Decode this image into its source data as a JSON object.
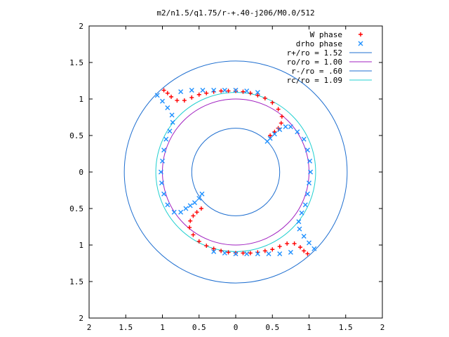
{
  "chart_data": {
    "type": "scatter",
    "title": "m2/n1.5/q1.75/r-+.40-j206/M0.0/512",
    "xlim": [
      -2,
      2
    ],
    "ylim": [
      -2,
      2
    ],
    "x_tick_labels": [
      "2",
      "1.5",
      "1",
      "0.5",
      "0",
      "0.5",
      "1",
      "1.5",
      "2"
    ],
    "y_tick_labels": [
      "2",
      "1.5",
      "1",
      "0.5",
      "0",
      "0.5",
      "1",
      "1.5",
      "2"
    ],
    "grid": false,
    "legend_position": "top-right",
    "circles": [
      {
        "name": "r+/ro = 1.52",
        "radius": 1.52,
        "color": "#1f6fd0"
      },
      {
        "name": "ro/ro = 1.00",
        "radius": 1.0,
        "color": "#a020c0"
      },
      {
        "name": "r-/ro = .60",
        "radius": 0.6,
        "color": "#1f6fd0"
      },
      {
        "name": "rc/ro = 1.09",
        "radius": 1.09,
        "color": "#20d0d0"
      }
    ],
    "series": [
      {
        "name": "W phase",
        "marker": "+",
        "color": "#ff0000",
        "points": [
          [
            -0.98,
            1.12
          ],
          [
            -0.93,
            1.08
          ],
          [
            -0.88,
            1.03
          ],
          [
            -0.8,
            0.98
          ],
          [
            -0.7,
            0.98
          ],
          [
            -0.6,
            1.02
          ],
          [
            -0.5,
            1.06
          ],
          [
            -0.4,
            1.08
          ],
          [
            -0.3,
            1.1
          ],
          [
            -0.2,
            1.11
          ],
          [
            -0.1,
            1.11
          ],
          [
            0.0,
            1.11
          ],
          [
            0.1,
            1.1
          ],
          [
            0.2,
            1.08
          ],
          [
            0.3,
            1.05
          ],
          [
            0.4,
            1.01
          ],
          [
            0.5,
            0.95
          ],
          [
            0.58,
            0.86
          ],
          [
            0.63,
            0.76
          ],
          [
            0.62,
            0.67
          ],
          [
            0.58,
            0.6
          ],
          [
            0.53,
            0.55
          ],
          [
            0.47,
            0.5
          ],
          [
            0.98,
            -1.12
          ],
          [
            0.93,
            -1.08
          ],
          [
            0.88,
            -1.03
          ],
          [
            0.8,
            -0.98
          ],
          [
            0.7,
            -0.98
          ],
          [
            0.6,
            -1.02
          ],
          [
            0.5,
            -1.06
          ],
          [
            0.4,
            -1.08
          ],
          [
            0.3,
            -1.1
          ],
          [
            0.2,
            -1.11
          ],
          [
            0.1,
            -1.11
          ],
          [
            0.0,
            -1.11
          ],
          [
            -0.1,
            -1.1
          ],
          [
            -0.2,
            -1.08
          ],
          [
            -0.3,
            -1.05
          ],
          [
            -0.4,
            -1.01
          ],
          [
            -0.5,
            -0.95
          ],
          [
            -0.58,
            -0.86
          ],
          [
            -0.63,
            -0.76
          ],
          [
            -0.62,
            -0.67
          ],
          [
            -0.58,
            -0.6
          ],
          [
            -0.53,
            -0.55
          ],
          [
            -0.47,
            -0.5
          ]
        ]
      },
      {
        "name": "drho phase",
        "marker": "x",
        "color": "#1e90ff",
        "points": [
          [
            -1.07,
            1.05
          ],
          [
            -1.0,
            0.97
          ],
          [
            -0.93,
            0.88
          ],
          [
            -0.87,
            0.78
          ],
          [
            -0.86,
            0.68
          ],
          [
            -0.9,
            0.56
          ],
          [
            -0.95,
            0.45
          ],
          [
            -0.98,
            0.3
          ],
          [
            -1.0,
            0.15
          ],
          [
            -1.02,
            0.0
          ],
          [
            -1.01,
            -0.15
          ],
          [
            -0.98,
            -0.3
          ],
          [
            -0.93,
            -0.45
          ],
          [
            -0.84,
            -0.55
          ],
          [
            -0.75,
            -0.55
          ],
          [
            -0.68,
            -0.5
          ],
          [
            -0.62,
            -0.46
          ],
          [
            -0.56,
            -0.42
          ],
          [
            -0.5,
            -0.36
          ],
          [
            -0.46,
            -0.3
          ],
          [
            -0.75,
            1.1
          ],
          [
            -0.6,
            1.12
          ],
          [
            -0.45,
            1.12
          ],
          [
            -0.3,
            1.12
          ],
          [
            -0.15,
            1.12
          ],
          [
            0.0,
            1.12
          ],
          [
            0.15,
            1.11
          ],
          [
            0.3,
            1.09
          ],
          [
            1.07,
            -1.05
          ],
          [
            1.0,
            -0.97
          ],
          [
            0.93,
            -0.88
          ],
          [
            0.87,
            -0.78
          ],
          [
            0.86,
            -0.68
          ],
          [
            0.9,
            -0.56
          ],
          [
            0.95,
            -0.45
          ],
          [
            0.98,
            -0.3
          ],
          [
            1.0,
            -0.15
          ],
          [
            1.02,
            0.0
          ],
          [
            1.01,
            0.15
          ],
          [
            0.98,
            0.3
          ],
          [
            0.93,
            0.45
          ],
          [
            0.84,
            0.55
          ],
          [
            0.75,
            0.62
          ],
          [
            0.68,
            0.62
          ],
          [
            0.6,
            0.58
          ],
          [
            0.53,
            0.52
          ],
          [
            0.47,
            0.46
          ],
          [
            0.43,
            0.42
          ],
          [
            0.75,
            -1.1
          ],
          [
            0.6,
            -1.12
          ],
          [
            0.45,
            -1.12
          ],
          [
            0.3,
            -1.12
          ],
          [
            0.15,
            -1.12
          ],
          [
            0.0,
            -1.12
          ],
          [
            -0.15,
            -1.11
          ],
          [
            -0.3,
            -1.09
          ]
        ]
      }
    ]
  }
}
